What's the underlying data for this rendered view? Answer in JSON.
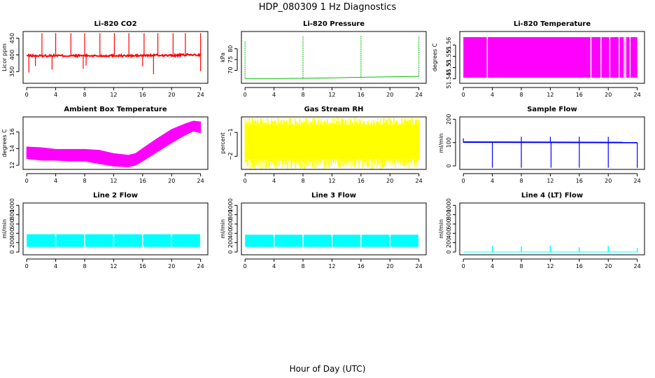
{
  "figure": {
    "title": "HDP_080309  1 Hz Diagnostics",
    "xlabel": "Hour of Day (UTC)"
  },
  "chart_data": [
    {
      "id": "co2",
      "type": "line",
      "title": "Li-820 CO2",
      "ylabel": "Licor ppm",
      "xlim": [
        -0.5,
        25
      ],
      "ylim": [
        315,
        470
      ],
      "xticks": [
        0,
        4,
        8,
        12,
        16,
        20,
        24
      ],
      "yticks": [
        350,
        400,
        450
      ],
      "color": "#ff0000",
      "series": [
        {
          "x": [
            0,
            2,
            4,
            6,
            8,
            10,
            12,
            14,
            16,
            18,
            20,
            22,
            24
          ],
          "values": [
            398,
            397,
            398,
            397,
            398,
            397,
            398,
            397,
            398,
            399,
            398,
            400,
            400
          ]
        }
      ],
      "spikes_up": [
        2.1,
        4.0,
        6.1,
        8.0,
        10.1,
        12.1,
        14.1,
        16.2,
        18.1,
        20.2,
        21.9,
        24.0
      ],
      "spikes_down": [
        0.3,
        1.2,
        3.5,
        7.8,
        8.2,
        16.0,
        17.5,
        24.0
      ]
    },
    {
      "id": "pressure",
      "type": "line",
      "title": "Li-820 Pressure",
      "ylabel": "kPa",
      "xlim": [
        -0.5,
        25
      ],
      "ylim": [
        64,
        88
      ],
      "xticks": [
        0,
        4,
        8,
        12,
        16,
        20,
        24
      ],
      "yticks": [
        70,
        75,
        80
      ],
      "color": "#00c000",
      "series": [
        {
          "x": [
            0,
            4,
            8,
            12,
            16,
            20,
            24
          ],
          "values": [
            66.2,
            66.2,
            66.3,
            66.5,
            66.8,
            67.0,
            67.2
          ]
        }
      ],
      "spikes_up": [
        0.0,
        8.0,
        16.0,
        24.0
      ]
    },
    {
      "id": "licor_temp",
      "type": "area",
      "title": "Li-820 Temperature",
      "ylabel": "degrees C",
      "xlim": [
        -0.5,
        25
      ],
      "ylim": [
        51.543,
        51.566
      ],
      "xticks": [
        0,
        4,
        8,
        12,
        16,
        20,
        24
      ],
      "yticks": [
        51.545,
        51.55,
        51.555,
        51.56
      ],
      "color": "#ff00ff",
      "band": [
        51.5455,
        51.5635
      ],
      "gaps": [
        3.3,
        17.6,
        19.0,
        20.2,
        21.5,
        22.2,
        22.4,
        23.0
      ]
    },
    {
      "id": "box_temp",
      "type": "area",
      "title": "Ambient Box Temperature",
      "ylabel": "degrees C",
      "xlim": [
        -0.5,
        25
      ],
      "ylim": [
        11.5,
        17.8
      ],
      "xticks": [
        0,
        4,
        8,
        12,
        16,
        20,
        24
      ],
      "yticks": [
        12,
        14,
        16
      ],
      "color": "#ff00ff",
      "series": [
        {
          "name": "",
          "x": [
            0,
            2,
            4,
            6,
            8,
            10,
            12,
            14,
            15,
            16,
            18,
            20,
            22,
            23,
            24
          ],
          "values": [
            12.8,
            12.6,
            12.6,
            12.5,
            12.5,
            12.2,
            11.9,
            11.8,
            12.0,
            12.5,
            13.6,
            14.7,
            15.7,
            16.1,
            15.9
          ]
        },
        {
          "name": "",
          "x": [
            0,
            2,
            4,
            6,
            8,
            10,
            12,
            14,
            15,
            16,
            18,
            20,
            22,
            23,
            24
          ],
          "values": [
            14.2,
            14.1,
            13.9,
            13.9,
            13.9,
            13.8,
            13.4,
            13.2,
            13.4,
            14.0,
            15.2,
            16.3,
            17.0,
            17.3,
            17.2
          ]
        }
      ]
    },
    {
      "id": "rh",
      "type": "area",
      "title": "Gas Stream RH",
      "ylabel": "percent",
      "xlim": [
        -0.5,
        25
      ],
      "ylim": [
        -2.55,
        -0.35
      ],
      "xticks": [
        0,
        4,
        8,
        12,
        16,
        20,
        24
      ],
      "yticks": [
        -2,
        -1
      ],
      "color": "#ffff00",
      "band": [
        -2.1,
        -0.7
      ],
      "noise_range": [
        -2.55,
        -0.35
      ]
    },
    {
      "id": "sample_flow",
      "type": "line",
      "title": "Sample Flow",
      "ylabel": "ml/min",
      "xlim": [
        -0.5,
        25
      ],
      "ylim": [
        -15,
        210
      ],
      "xticks": [
        0,
        4,
        8,
        12,
        16,
        20,
        24
      ],
      "yticks": [
        0,
        100,
        200
      ],
      "color": "#0000ff",
      "series": [
        {
          "x": [
            0,
            24
          ],
          "values": [
            102,
            100
          ]
        }
      ],
      "spikes_down": [
        4.0,
        8.0,
        12.1,
        16.0,
        20.0,
        24.0
      ],
      "spikes_up": [
        0.0,
        8.0,
        12.0,
        16.0,
        20.0
      ]
    },
    {
      "id": "line2_flow",
      "type": "area",
      "title": "Line 2 Flow",
      "ylabel": "ml/min",
      "xlim": [
        -0.5,
        25
      ],
      "ylim": [
        -60,
        1050
      ],
      "xticks": [
        0,
        4,
        8,
        12,
        16,
        20,
        24
      ],
      "yticks": [
        0,
        200,
        400,
        600,
        800,
        1000
      ],
      "color": "#00ffff",
      "band": [
        110,
        380
      ],
      "gaps": [
        4.0,
        8.0,
        12.0,
        16.0,
        20.0,
        24.0
      ]
    },
    {
      "id": "line3_flow",
      "type": "area",
      "title": "Line 3 Flow",
      "ylabel": "ml/min",
      "xlim": [
        -0.5,
        25
      ],
      "ylim": [
        -60,
        1050
      ],
      "xticks": [
        0,
        4,
        8,
        12,
        16,
        20,
        24
      ],
      "yticks": [
        0,
        200,
        400,
        600,
        800,
        1000
      ],
      "color": "#00ffff",
      "band": [
        110,
        370
      ],
      "gaps": [
        4.0,
        8.0,
        12.0,
        16.0,
        20.0,
        24.0
      ]
    },
    {
      "id": "line4_flow",
      "type": "line",
      "title": "Line 4 (LT) Flow",
      "ylabel": "ml/min",
      "xlim": [
        -0.5,
        25
      ],
      "ylim": [
        -60,
        1050
      ],
      "xticks": [
        0,
        4,
        8,
        12,
        16,
        20,
        24
      ],
      "yticks": [
        0,
        200,
        400,
        600,
        800,
        1000
      ],
      "color": "#00ffff",
      "series": [
        {
          "x": [
            0,
            24
          ],
          "values": [
            0,
            0
          ]
        }
      ],
      "spikes_up": [
        4.0,
        8.0,
        12.0,
        16.0,
        20.0,
        24.0
      ],
      "spike_heights": [
        130,
        120,
        140,
        100,
        130,
        90
      ]
    }
  ]
}
